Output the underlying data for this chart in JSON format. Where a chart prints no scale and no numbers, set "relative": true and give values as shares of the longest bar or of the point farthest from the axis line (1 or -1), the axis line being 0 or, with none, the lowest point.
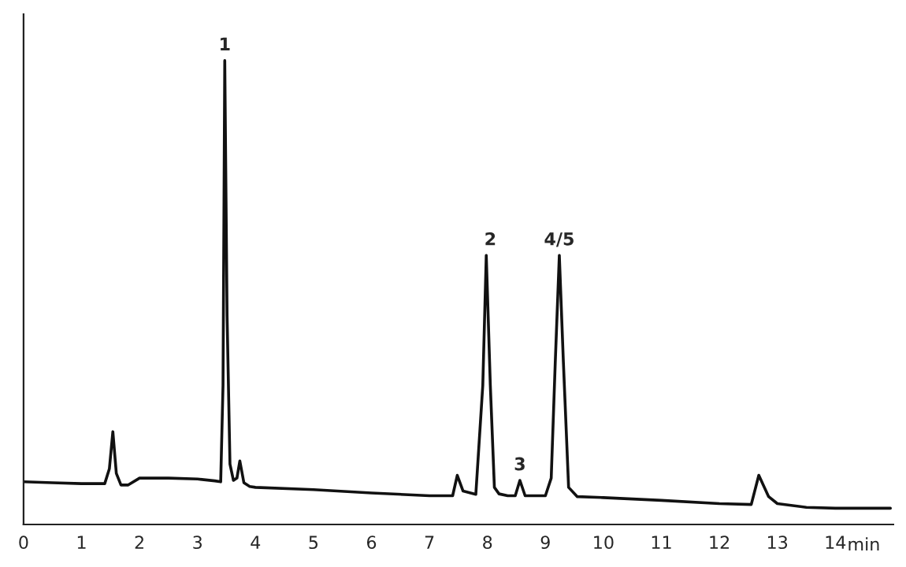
{
  "chart_data": {
    "type": "line",
    "relative": true,
    "xlabel": "min",
    "xlim": [
      0,
      15
    ],
    "xticks": [
      0,
      1,
      2,
      3,
      4,
      5,
      6,
      7,
      8,
      9,
      10,
      11,
      12,
      13,
      14
    ],
    "tick_labels": "x",
    "grid": false,
    "legend": false,
    "marker": "none",
    "line_style": "solid",
    "series": [
      {
        "color": "#111111",
        "x": [
          0,
          0.5,
          1.0,
          1.4,
          1.48,
          1.54,
          1.6,
          1.68,
          1.8,
          2.0,
          2.5,
          3.0,
          3.3,
          3.4,
          3.44,
          3.47,
          3.51,
          3.56,
          3.62,
          3.68,
          3.73,
          3.8,
          3.9,
          4.0,
          5.0,
          6.0,
          7.0,
          7.4,
          7.48,
          7.58,
          7.8,
          7.92,
          7.98,
          8.05,
          8.12,
          8.2,
          8.35,
          8.48,
          8.56,
          8.65,
          9.0,
          9.1,
          9.17,
          9.24,
          9.31,
          9.4,
          9.55,
          10.0,
          11.0,
          12.0,
          12.55,
          12.68,
          12.85,
          13.0,
          13.5,
          14.0,
          14.95
        ],
        "values": [
          0.092,
          0.09,
          0.088,
          0.088,
          0.12,
          0.2,
          0.11,
          0.085,
          0.085,
          0.1,
          0.1,
          0.098,
          0.094,
          0.092,
          0.3,
          1.0,
          0.45,
          0.13,
          0.095,
          0.1,
          0.137,
          0.09,
          0.082,
          0.08,
          0.075,
          0.068,
          0.062,
          0.062,
          0.106,
          0.072,
          0.065,
          0.3,
          0.58,
          0.3,
          0.08,
          0.066,
          0.062,
          0.062,
          0.095,
          0.062,
          0.062,
          0.1,
          0.35,
          0.58,
          0.35,
          0.08,
          0.06,
          0.058,
          0.052,
          0.045,
          0.043,
          0.106,
          0.06,
          0.045,
          0.037,
          0.035,
          0.035
        ]
      }
    ],
    "annotations": [
      {
        "text": "1",
        "x": 3.47,
        "y": 1.0
      },
      {
        "text": "2",
        "x": 8.05,
        "y": 0.58
      },
      {
        "text": "3",
        "x": 8.56,
        "y": 0.095
      },
      {
        "text": "4/5",
        "x": 9.24,
        "y": 0.58
      }
    ]
  }
}
